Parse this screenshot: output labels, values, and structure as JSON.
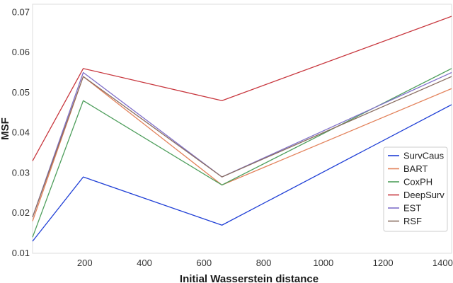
{
  "chart_data": {
    "type": "line",
    "title": "",
    "xlabel": "Initial Wasserstein distance",
    "ylabel": "MSF",
    "xlim": [
      25,
      1430
    ],
    "ylim": [
      0.01,
      0.072
    ],
    "xticks": [
      200,
      400,
      600,
      800,
      1000,
      1200,
      1400
    ],
    "yticks": [
      0.01,
      0.02,
      0.03,
      0.04,
      0.05,
      0.06,
      0.07
    ],
    "grid": true,
    "legend_position": "lower-right",
    "x": [
      25,
      195,
      660,
      1430
    ],
    "series": [
      {
        "name": "SurvCaus",
        "color": "#1f3fd6",
        "values": [
          0.013,
          0.029,
          0.017,
          0.047
        ]
      },
      {
        "name": "BART",
        "color": "#e3825b",
        "values": [
          0.018,
          0.054,
          0.027,
          0.051
        ]
      },
      {
        "name": "CoxPH",
        "color": "#4e9e5c",
        "values": [
          0.014,
          0.048,
          0.027,
          0.056
        ]
      },
      {
        "name": "DeepSurv",
        "color": "#c8373e",
        "values": [
          0.033,
          0.056,
          0.048,
          0.069
        ]
      },
      {
        "name": "EST",
        "color": "#7f6fc9",
        "values": [
          0.019,
          0.055,
          0.029,
          0.055
        ]
      },
      {
        "name": "RSF",
        "color": "#8a6e62",
        "values": [
          0.019,
          0.054,
          0.029,
          0.054
        ]
      }
    ]
  }
}
